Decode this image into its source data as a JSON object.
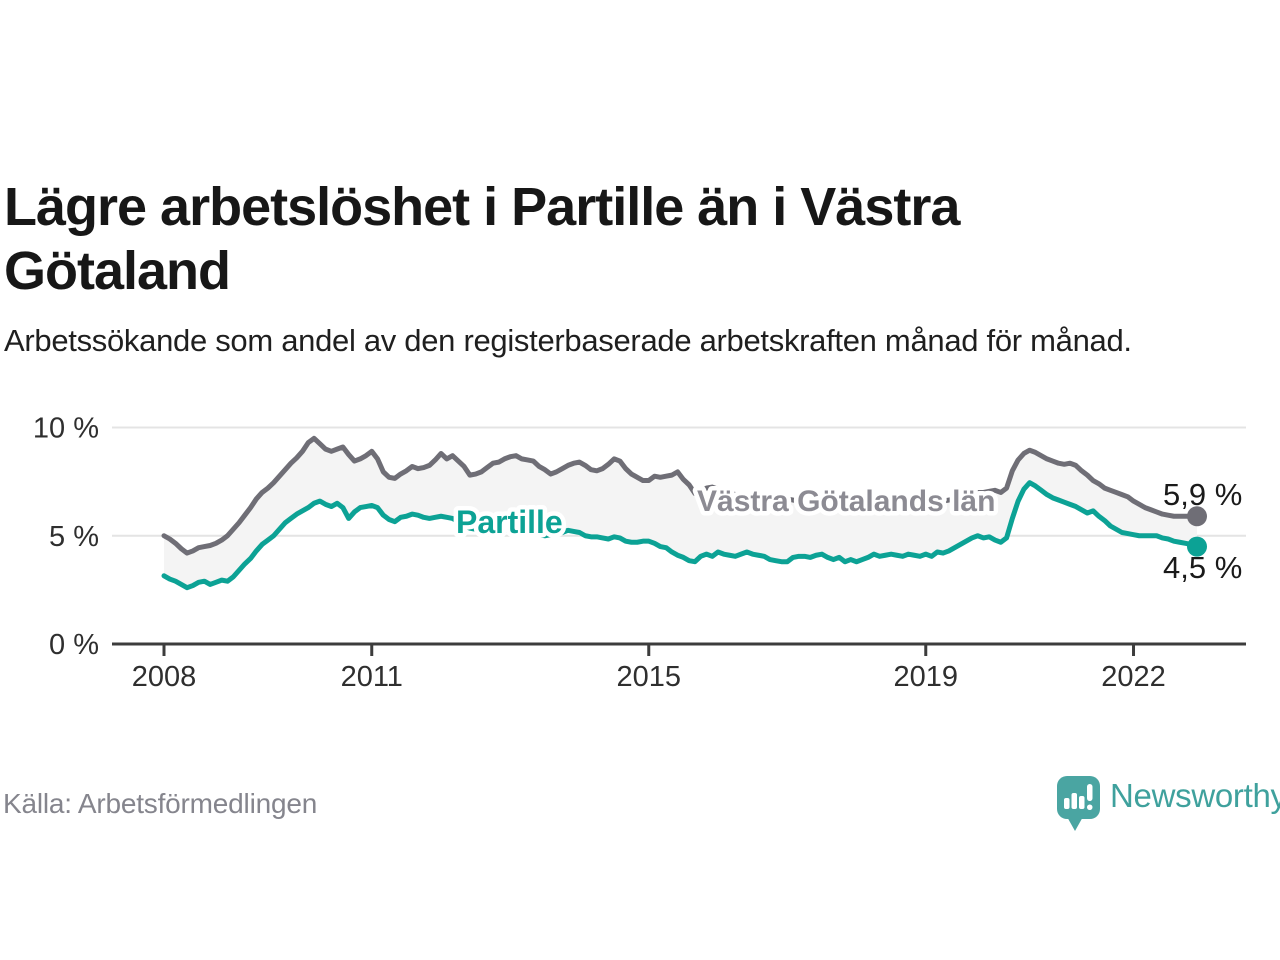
{
  "header": {
    "title": "Lägre arbetslöshet i Partille än i Västra Götaland",
    "subtitle": "Arbetssökande som andel av den registerbaserade arbetskraften månad för månad."
  },
  "footer": {
    "source": "Källa: Arbetsförmedlingen",
    "brand": "Newsworthy",
    "brand_icon": "newsworthy-speech-bubble-bar-chart-icon"
  },
  "colors": {
    "partille_line": "#0ca295",
    "region_line": "#6f6e76",
    "region_label_text": "#8c8b93",
    "band_fill": "#f4f4f4",
    "gridline": "#e4e4e4",
    "axis_line": "#3c3c3c",
    "axis_text": "#2f2f2f",
    "value_label_text": "#1a1a1a",
    "brand_teal": "#3fa19d",
    "brand_icon_teal": "#4aa5a2"
  },
  "chart_data": {
    "type": "line",
    "title": "Lägre arbetslöshet i Partille än i Västra Götaland",
    "xlabel": "",
    "ylabel": "Arbetssökande som andel av den registerbaserade arbetskraften",
    "x_start": "2008-01",
    "x_end": "2022-12",
    "x_frequency": "monthly",
    "ylim": [
      0,
      10.8
    ],
    "grid": "horizontal",
    "x_ticks": [
      {
        "year": 2008,
        "label": "2008"
      },
      {
        "year": 2011,
        "label": "2011"
      },
      {
        "year": 2015,
        "label": "2015"
      },
      {
        "year": 2019,
        "label": "2019"
      },
      {
        "year": 2022,
        "label": "2022"
      }
    ],
    "y_ticks": [
      {
        "value": 0,
        "label": "0 %"
      },
      {
        "value": 5,
        "label": "5 %"
      },
      {
        "value": 10,
        "label": "10 %"
      }
    ],
    "series": [
      {
        "name": "Västra Götalands län",
        "color": "#6f6e76",
        "end_label": "5,9 %",
        "values": [
          5.0,
          4.85,
          4.65,
          4.4,
          4.2,
          4.3,
          4.45,
          4.5,
          4.55,
          4.65,
          4.8,
          5.0,
          5.3,
          5.6,
          5.95,
          6.3,
          6.7,
          7.0,
          7.2,
          7.45,
          7.75,
          8.05,
          8.35,
          8.6,
          8.9,
          9.3,
          9.5,
          9.25,
          9.0,
          8.9,
          9.0,
          9.1,
          8.75,
          8.45,
          8.55,
          8.7,
          8.9,
          8.55,
          7.95,
          7.7,
          7.65,
          7.85,
          8.0,
          8.2,
          8.1,
          8.15,
          8.25,
          8.5,
          8.8,
          8.55,
          8.7,
          8.45,
          8.2,
          7.8,
          7.85,
          7.95,
          8.15,
          8.35,
          8.4,
          8.55,
          8.65,
          8.7,
          8.55,
          8.5,
          8.45,
          8.2,
          8.05,
          7.85,
          7.95,
          8.1,
          8.25,
          8.35,
          8.4,
          8.25,
          8.05,
          8.0,
          8.1,
          8.3,
          8.55,
          8.45,
          8.1,
          7.85,
          7.7,
          7.55,
          7.55,
          7.75,
          7.7,
          7.75,
          7.8,
          7.95,
          7.6,
          7.35,
          6.95,
          7.05,
          7.2,
          7.25,
          7.15,
          7.1,
          7.0,
          6.9,
          6.85,
          6.8,
          6.9,
          6.85,
          6.7,
          6.6,
          6.6,
          6.65,
          6.7,
          6.65,
          6.6,
          6.5,
          6.45,
          6.5,
          6.6,
          6.5,
          6.4,
          6.35,
          6.4,
          6.45,
          6.5,
          6.45,
          6.35,
          6.3,
          6.25,
          6.35,
          6.45,
          6.4,
          6.3,
          6.35,
          6.4,
          6.45,
          6.5,
          6.45,
          6.55,
          6.6,
          6.65,
          6.7,
          6.8,
          6.9,
          6.95,
          7.0,
          7.0,
          7.05,
          7.1,
          7.0,
          7.2,
          8.0,
          8.5,
          8.8,
          8.95,
          8.85,
          8.7,
          8.55,
          8.45,
          8.35,
          8.3,
          8.35,
          8.25,
          8.0,
          7.8,
          7.55,
          7.4,
          7.2,
          7.1,
          7.0,
          6.9,
          6.8,
          6.6,
          6.45,
          6.3,
          6.2,
          6.1,
          6.0,
          5.95,
          5.9,
          5.9,
          5.9,
          5.9,
          5.9
        ]
      },
      {
        "name": "Partille",
        "color": "#0ca295",
        "end_label": "4,5 %",
        "values": [
          3.15,
          3.0,
          2.9,
          2.75,
          2.6,
          2.7,
          2.85,
          2.9,
          2.75,
          2.85,
          2.95,
          2.9,
          3.1,
          3.4,
          3.7,
          3.95,
          4.3,
          4.6,
          4.8,
          5.0,
          5.3,
          5.6,
          5.8,
          6.0,
          6.15,
          6.3,
          6.5,
          6.6,
          6.45,
          6.35,
          6.5,
          6.3,
          5.8,
          6.1,
          6.3,
          6.35,
          6.4,
          6.3,
          5.95,
          5.75,
          5.65,
          5.85,
          5.9,
          6.0,
          5.95,
          5.85,
          5.8,
          5.85,
          5.9,
          5.85,
          5.8,
          5.65,
          5.45,
          5.35,
          5.3,
          5.35,
          5.3,
          5.25,
          5.3,
          5.25,
          5.3,
          5.25,
          5.2,
          5.15,
          5.1,
          5.05,
          5.0,
          5.05,
          5.1,
          5.15,
          5.25,
          5.2,
          5.15,
          5.0,
          4.95,
          4.95,
          4.9,
          4.85,
          4.95,
          4.9,
          4.75,
          4.7,
          4.7,
          4.75,
          4.75,
          4.65,
          4.5,
          4.45,
          4.25,
          4.1,
          4.0,
          3.85,
          3.8,
          4.05,
          4.15,
          4.05,
          4.25,
          4.15,
          4.1,
          4.05,
          4.15,
          4.25,
          4.15,
          4.1,
          4.05,
          3.9,
          3.85,
          3.8,
          3.8,
          4.0,
          4.05,
          4.05,
          4.0,
          4.1,
          4.15,
          4.0,
          3.9,
          4.0,
          3.8,
          3.9,
          3.8,
          3.9,
          4.0,
          4.15,
          4.05,
          4.1,
          4.15,
          4.1,
          4.05,
          4.15,
          4.1,
          4.05,
          4.15,
          4.05,
          4.25,
          4.2,
          4.3,
          4.45,
          4.6,
          4.75,
          4.9,
          5.0,
          4.9,
          4.95,
          4.8,
          4.7,
          4.9,
          5.8,
          6.6,
          7.15,
          7.45,
          7.3,
          7.1,
          6.9,
          6.75,
          6.65,
          6.55,
          6.45,
          6.35,
          6.2,
          6.05,
          6.15,
          5.9,
          5.7,
          5.45,
          5.3,
          5.15,
          5.1,
          5.05,
          5.0,
          5.0,
          5.0,
          5.0,
          4.9,
          4.85,
          4.75,
          4.7,
          4.65,
          4.6,
          4.5
        ]
      }
    ],
    "annotations": [
      {
        "text": "Partille",
        "series": "Partille"
      },
      {
        "text": "Västra Götalands län",
        "series": "Västra Götalands län"
      }
    ],
    "legend_position": "inline-labels"
  }
}
